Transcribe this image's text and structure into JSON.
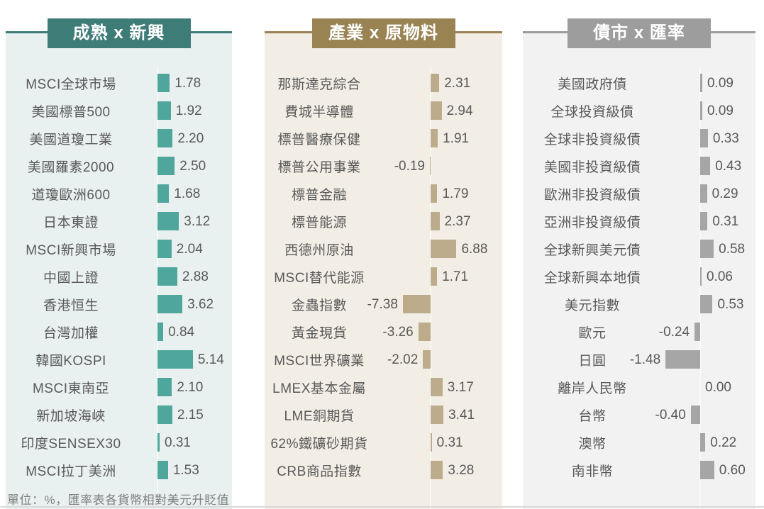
{
  "footer_note": "單位：%，匯率表各貨幣相對美元升貶值",
  "chart_data": [
    {
      "type": "bar",
      "orientation": "horizontal",
      "title": "成熟 x 新興",
      "unit": "%",
      "categories": [
        "MSCI全球市場",
        "美國標普500",
        "美國道瓊工業",
        "美國羅素2000",
        "道瓊歐洲600",
        "日本東證",
        "MSCI新興市場",
        "中國上證",
        "香港恒生",
        "台灣加權",
        "韓國KOSPI",
        "MSCI東南亞",
        "新加坡海峽",
        "印度SENSEX30",
        "MSCI拉丁美洲"
      ],
      "values": [
        1.78,
        1.92,
        2.2,
        2.5,
        1.68,
        3.12,
        2.04,
        2.88,
        3.62,
        0.84,
        5.14,
        2.1,
        2.15,
        0.31,
        1.53
      ],
      "value_labels": [
        "1.78",
        "1.92",
        "2.20",
        "2.50",
        "1.68",
        "3.12",
        "2.04",
        "2.88",
        "3.62",
        "0.84",
        "5.14",
        "2.10",
        "2.15",
        "0.31",
        "1.53"
      ],
      "axis_tick_labels_visible": false,
      "legend": "none",
      "colors": {
        "header_bg": "#3E7C78",
        "panel_bg": "#E9F1F0",
        "bar": "#4EA69C",
        "title_text": "#FFFFFF",
        "label_text": "#595959",
        "axis_line": "#F5FAF9"
      }
    },
    {
      "type": "bar",
      "orientation": "horizontal",
      "title": "產業 x 原物料",
      "unit": "%",
      "categories": [
        "那斯達克綜合",
        "費城半導體",
        "標普醫療保健",
        "標普公用事業",
        "標普金融",
        "標普能源",
        "西德州原油",
        "MSCI替代能源",
        "金蟲指數",
        "黃金現貨",
        "MSCI世界礦業",
        "LMEX基本金屬",
        "LME銅期貨",
        "62%鐵礦砂期貨",
        "CRB商品指數"
      ],
      "values": [
        2.31,
        2.94,
        1.91,
        -0.19,
        1.79,
        2.37,
        6.88,
        1.71,
        -7.38,
        -3.26,
        -2.02,
        3.17,
        3.41,
        0.31,
        3.28
      ],
      "value_labels": [
        "2.31",
        "2.94",
        "1.91",
        "-0.19",
        "1.79",
        "2.37",
        "6.88",
        "1.71",
        "-7.38",
        "-3.26",
        "-2.02",
        "3.17",
        "3.41",
        "0.31",
        "3.28"
      ],
      "axis_tick_labels_visible": false,
      "legend": "none",
      "colors": {
        "header_bg": "#9A8353",
        "panel_bg": "#F2EEE5",
        "bar": "#BCAC8B",
        "title_text": "#FFFFFF",
        "label_text": "#595959",
        "axis_line": "#FBF8F2"
      }
    },
    {
      "type": "bar",
      "orientation": "horizontal",
      "title": "債市 x 匯率",
      "unit": "%",
      "categories": [
        "美國政府債",
        "全球投資級債",
        "全球非投資級債",
        "美國非投資級債",
        "歐洲非投資級債",
        "亞洲非投資級債",
        "全球新興美元債",
        "全球新興本地債",
        "美元指數",
        "歐元",
        "日圓",
        "離岸人民幣",
        "台幣",
        "澳幣",
        "南非幣"
      ],
      "values": [
        0.09,
        0.09,
        0.33,
        0.43,
        0.29,
        0.31,
        0.58,
        0.06,
        0.53,
        -0.24,
        -1.48,
        0.0,
        -0.4,
        0.22,
        0.6
      ],
      "value_labels": [
        "0.09",
        "0.09",
        "0.33",
        "0.43",
        "0.29",
        "0.31",
        "0.58",
        "0.06",
        "0.53",
        "-0.24",
        "-1.48",
        "0.00",
        "-0.40",
        "0.22",
        "0.60"
      ],
      "axis_tick_labels_visible": false,
      "legend": "none",
      "colors": {
        "header_bg": "#9D9D9D",
        "panel_bg": "#F2F2F2",
        "bar": "#A6A6A6",
        "title_text": "#FFFFFF",
        "label_text": "#595959",
        "axis_line": "#FAFAFA"
      }
    }
  ]
}
